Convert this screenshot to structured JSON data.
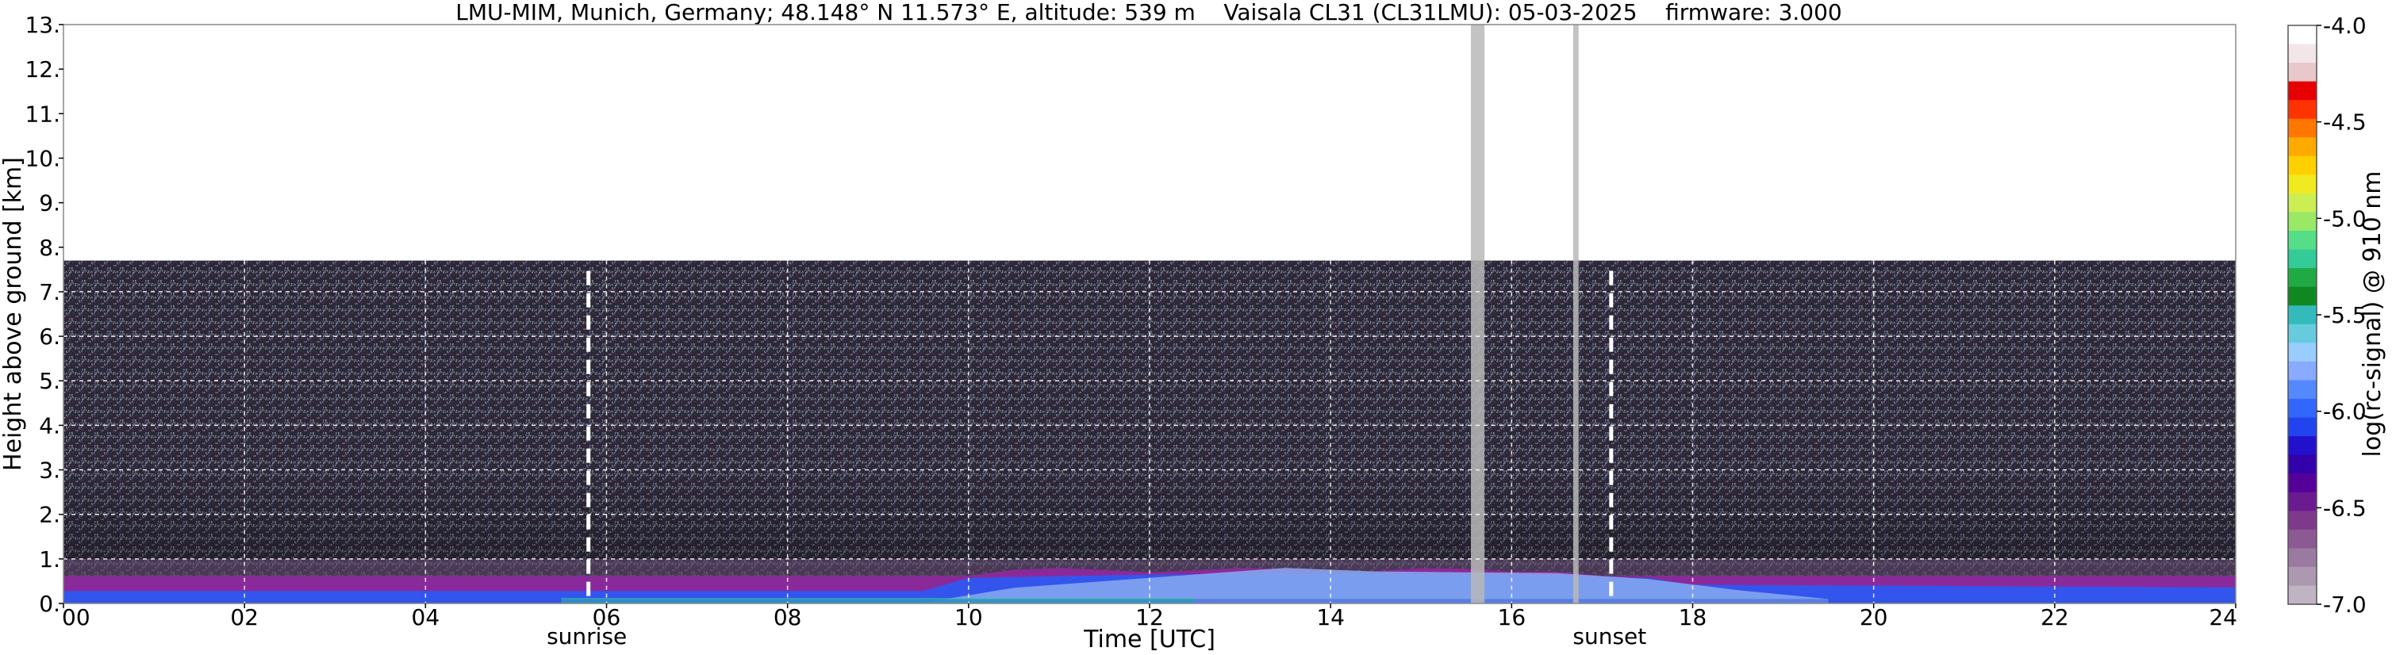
{
  "chart_data": {
    "type": "heatmap",
    "title": "LMU-MIM, Munich, Germany; 48.148° N 11.573° E, altitude: 539 m    Vaisala CL31 (CL31LMU): 05-03-2025    firmware: 3.000",
    "xlabel": "Time [UTC]",
    "ylabel": "Height above ground [km]",
    "colorbar_label": "log(rc-signal) @ 910 nm",
    "xlim": [
      0,
      24
    ],
    "ylim": [
      0,
      13
    ],
    "clim": [
      -7.0,
      -4.0
    ],
    "grid": true,
    "x_ticks": [
      "00",
      "02",
      "04",
      "06",
      "08",
      "10",
      "12",
      "14",
      "16",
      "18",
      "20",
      "22",
      "24"
    ],
    "y_ticks": [
      "0.",
      "1.",
      "2.",
      "3.",
      "4.",
      "5.",
      "6.",
      "7.",
      "8.",
      "9.",
      "10.",
      "11.",
      "12.",
      "13."
    ],
    "colorbar_ticks": [
      "-4.0",
      "-4.5",
      "-5.0",
      "-5.5",
      "-6.0",
      "-6.5",
      "-7.0"
    ],
    "colorbar_tick_values": [
      -4.0,
      -4.5,
      -5.0,
      -5.5,
      -6.0,
      -6.5,
      -7.0
    ],
    "events": [
      {
        "name": "sunrise",
        "time": 5.8
      },
      {
        "name": "sunset",
        "time": 17.1
      }
    ],
    "measurement_top_km": 7.7,
    "data_gaps_hours": [
      [
        15.55,
        15.7
      ],
      [
        16.68,
        16.74
      ]
    ],
    "colormap": [
      "#ffffff",
      "#f3e6e9",
      "#e9c8cc",
      "#e60000",
      "#ff3300",
      "#ff7700",
      "#ffaa00",
      "#ffd000",
      "#f2ea20",
      "#ccee55",
      "#99e866",
      "#55dd88",
      "#33cc99",
      "#20aa44",
      "#108822",
      "#33bbbb",
      "#66ccdd",
      "#99ccff",
      "#88aaff",
      "#5588ff",
      "#3366ff",
      "#2244ee",
      "#2211cc",
      "#3300aa",
      "#550099",
      "#6b1a8f",
      "#7d3a8a",
      "#8c5a92",
      "#9a7aa0",
      "#ac98b0",
      "#c0b4c4"
    ]
  }
}
